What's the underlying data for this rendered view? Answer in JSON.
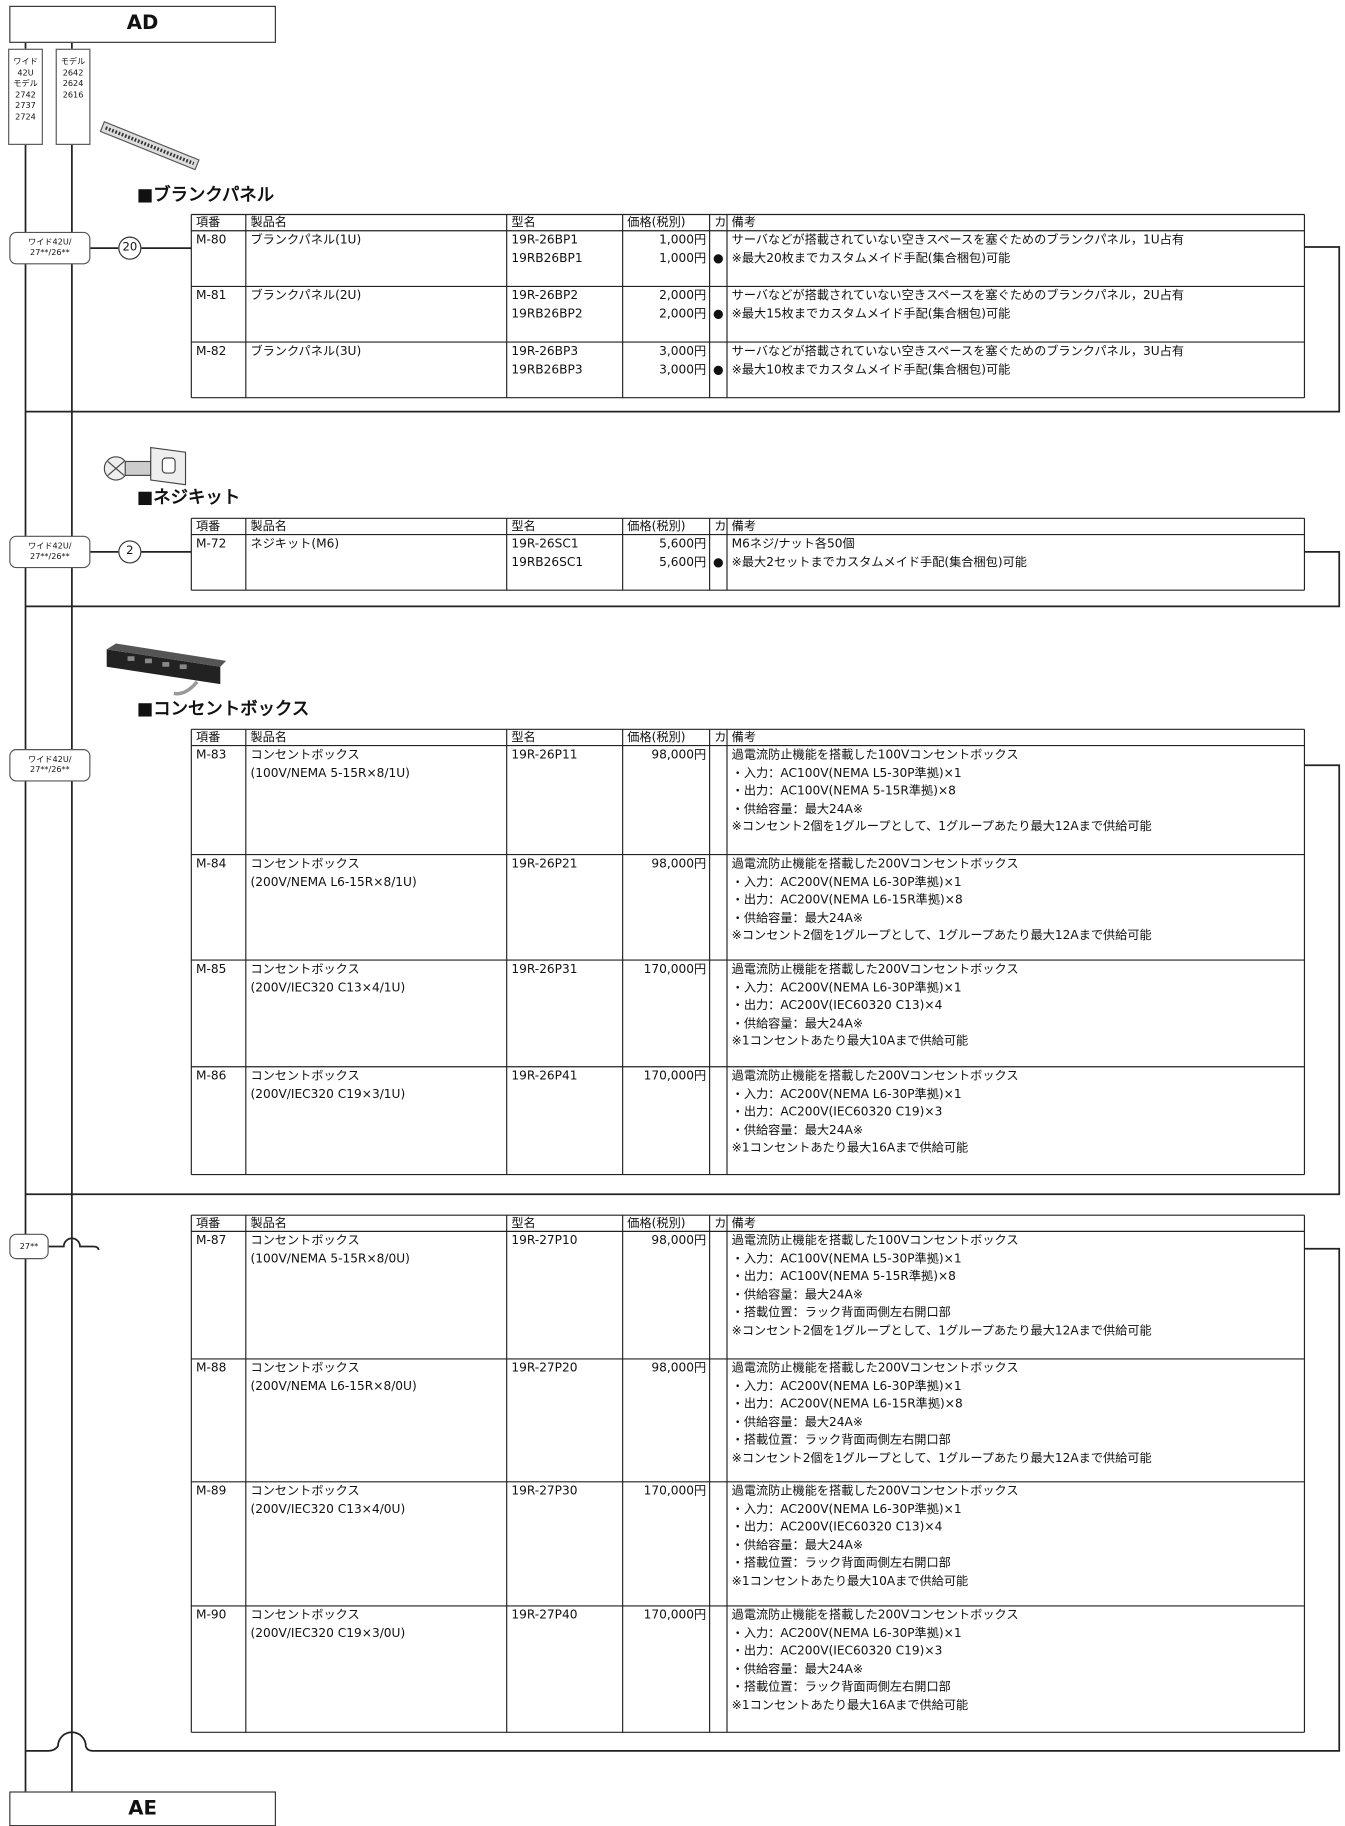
{
  "header": {
    "title": "AD"
  },
  "model_labels": [
    [
      "ワイド",
      "42U",
      "モデル",
      "2742",
      "2737",
      "2724"
    ],
    [
      "モデル",
      "2642",
      "2624",
      "2616"
    ]
  ],
  "columns": [
    "項番",
    "製品名",
    "型名",
    "価格(税別)",
    "カ",
    "備考"
  ],
  "sections": [
    {
      "title": "■ブランクパネル",
      "tag": [
        "ワイド42U/",
        "27**/26**"
      ],
      "qty": "20",
      "rows": [
        {
          "id": "M-80",
          "name": [
            "ブランクパネル(1U)"
          ],
          "models": [
            "19R-26BP1",
            "19RB26BP1"
          ],
          "prices": [
            "1,000円",
            "1,000円"
          ],
          "custom": "●",
          "notes": [
            "サーバなどが搭載されていない空きスペースを塞ぐためのブランクパネル，1U占有",
            "※最大20枚までカスタムメイド手配(集合梱包)可能"
          ]
        },
        {
          "id": "M-81",
          "name": [
            "ブランクパネル(2U)"
          ],
          "models": [
            "19R-26BP2",
            "19RB26BP2"
          ],
          "prices": [
            "2,000円",
            "2,000円"
          ],
          "custom": "●",
          "notes": [
            "サーバなどが搭載されていない空きスペースを塞ぐためのブランクパネル，2U占有",
            "※最大15枚までカスタムメイド手配(集合梱包)可能"
          ]
        },
        {
          "id": "M-82",
          "name": [
            "ブランクパネル(3U)"
          ],
          "models": [
            "19R-26BP3",
            "19RB26BP3"
          ],
          "prices": [
            "3,000円",
            "3,000円"
          ],
          "custom": "●",
          "notes": [
            "サーバなどが搭載されていない空きスペースを塞ぐためのブランクパネル，3U占有",
            "※最大10枚までカスタムメイド手配(集合梱包)可能"
          ]
        }
      ]
    },
    {
      "title": "■ネジキット",
      "tag": [
        "ワイド42U/",
        "27**/26**"
      ],
      "qty": "2",
      "rows": [
        {
          "id": "M-72",
          "name": [
            "ネジキット(M6)"
          ],
          "models": [
            "19R-26SC1",
            "19RB26SC1"
          ],
          "prices": [
            "5,600円",
            "5,600円"
          ],
          "custom": "●",
          "notes": [
            "M6ネジ/ナット各50個",
            "※最大2セットまでカスタムメイド手配(集合梱包)可能"
          ]
        }
      ]
    },
    {
      "title": "■コンセントボックス",
      "tag": [
        "ワイド42U/",
        "27**/26**"
      ],
      "rows": [
        {
          "id": "M-83",
          "name": [
            "コンセントボックス",
            "(100V/NEMA 5-15R×8/1U)"
          ],
          "models": [
            "19R-26P11"
          ],
          "prices": [
            "98,000円"
          ],
          "notes": [
            "過電流防止機能を搭載した100Vコンセントボックス",
            "・入力：AC100V(NEMA L5-30P準拠)×1",
            "・出力：AC100V(NEMA 5-15R準拠)×8",
            "・供給容量：最大24A※",
            "※コンセント2個を1グループとして、1グループあたり最大12Aまで供給可能"
          ]
        },
        {
          "id": "M-84",
          "name": [
            "コンセントボックス",
            "(200V/NEMA L6-15R×8/1U)"
          ],
          "models": [
            "19R-26P21"
          ],
          "prices": [
            "98,000円"
          ],
          "notes": [
            "過電流防止機能を搭載した200Vコンセントボックス",
            "・入力：AC200V(NEMA L6-30P準拠)×1",
            "・出力：AC200V(NEMA L6-15R準拠)×8",
            "・供給容量：最大24A※",
            "※コンセント2個を1グループとして、1グループあたり最大12Aまで供給可能"
          ]
        },
        {
          "id": "M-85",
          "name": [
            "コンセントボックス",
            "(200V/IEC320 C13×4/1U)"
          ],
          "models": [
            "19R-26P31"
          ],
          "prices": [
            "170,000円"
          ],
          "notes": [
            "過電流防止機能を搭載した200Vコンセントボックス",
            "・入力：AC200V(NEMA L6-30P準拠)×1",
            "・出力：AC200V(IEC60320 C13)×4",
            "・供給容量：最大24A※",
            "※1コンセントあたり最大10Aまで供給可能"
          ]
        },
        {
          "id": "M-86",
          "name": [
            "コンセントボックス",
            "(200V/IEC320 C19×3/1U)"
          ],
          "models": [
            "19R-26P41"
          ],
          "prices": [
            "170,000円"
          ],
          "notes": [
            "過電流防止機能を搭載した200Vコンセントボックス",
            "・入力：AC200V(NEMA L6-30P準拠)×1",
            "・出力：AC200V(IEC60320 C19)×3",
            "・供給容量：最大24A※",
            "※1コンセントあたり最大16Aまで供給可能"
          ]
        }
      ]
    },
    {
      "tag": [
        "27**"
      ],
      "rows": [
        {
          "id": "M-87",
          "name": [
            "コンセントボックス",
            "(100V/NEMA 5-15R×8/0U)"
          ],
          "models": [
            "19R-27P10"
          ],
          "prices": [
            "98,000円"
          ],
          "notes": [
            "過電流防止機能を搭載した100Vコンセントボックス",
            "・入力：AC100V(NEMA L5-30P準拠)×1",
            "・出力：AC100V(NEMA 5-15R準拠)×8",
            "・供給容量：最大24A※",
            "・搭載位置：ラック背面両側左右開口部",
            "※コンセント2個を1グループとして、1グループあたり最大12Aまで供給可能"
          ]
        },
        {
          "id": "M-88",
          "name": [
            "コンセントボックス",
            "(200V/NEMA L6-15R×8/0U)"
          ],
          "models": [
            "19R-27P20"
          ],
          "prices": [
            "98,000円"
          ],
          "notes": [
            "過電流防止機能を搭載した200Vコンセントボックス",
            "・入力：AC200V(NEMA L6-30P準拠)×1",
            "・出力：AC200V(NEMA L6-15R準拠)×8",
            "・供給容量：最大24A※",
            "・搭載位置：ラック背面両側左右開口部",
            "※コンセント2個を1グループとして、1グループあたり最大12Aまで供給可能"
          ]
        },
        {
          "id": "M-89",
          "name": [
            "コンセントボックス",
            "(200V/IEC320 C13×4/0U)"
          ],
          "models": [
            "19R-27P30"
          ],
          "prices": [
            "170,000円"
          ],
          "notes": [
            "過電流防止機能を搭載した200Vコンセントボックス",
            "・入力：AC200V(NEMA L6-30P準拠)×1",
            "・出力：AC200V(IEC60320 C13)×4",
            "・供給容量：最大24A※",
            "・搭載位置：ラック背面両側左右開口部",
            "※1コンセントあたり最大10Aまで供給可能"
          ]
        },
        {
          "id": "M-90",
          "name": [
            "コンセントボックス",
            "(200V/IEC320 C19×3/0U)"
          ],
          "models": [
            "19R-27P40"
          ],
          "prices": [
            "170,000円"
          ],
          "notes": [
            "過電流防止機能を搭載した200Vコンセントボックス",
            "・入力：AC200V(NEMA L6-30P準拠)×1",
            "・出力：AC200V(IEC60320 C19)×3",
            "・供給容量：最大24A※",
            "・搭載位置：ラック背面両側左右開口部",
            "※1コンセントあたり最大16Aまで供給可能"
          ]
        }
      ]
    }
  ],
  "footer": {
    "title": "AE"
  }
}
